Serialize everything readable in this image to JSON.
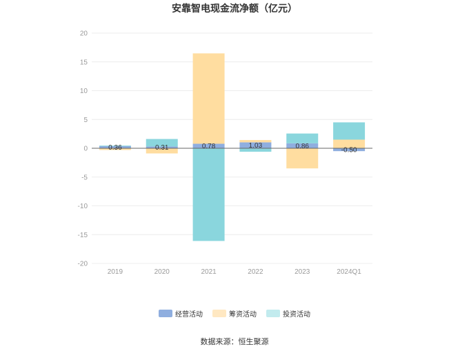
{
  "chart_data": {
    "type": "bar",
    "stacked": true,
    "title": "安靠智电现金流净额（亿元）",
    "categories": [
      "2019",
      "2020",
      "2021",
      "2022",
      "2023",
      "2024Q1"
    ],
    "series": [
      {
        "name": "经营活动",
        "color": "#8FAEDF",
        "values": [
          0.36,
          0.31,
          0.78,
          1.03,
          0.86,
          -0.5
        ]
      },
      {
        "name": "筹资活动",
        "color": "#FFDDA0",
        "values": [
          -0.3,
          -0.9,
          15.7,
          0.4,
          -3.5,
          1.5
        ]
      },
      {
        "name": "投资活动",
        "color": "#8AD6DD",
        "values": [
          0.1,
          1.3,
          -16.1,
          -0.6,
          1.7,
          3.0
        ]
      }
    ],
    "data_labels": [
      "0.36",
      "0.31",
      "0.78",
      "1.03",
      "0.86",
      "-0.50"
    ],
    "yticks": [
      20,
      15,
      10,
      5,
      0,
      -5,
      -10,
      -15,
      -20
    ],
    "ylim": [
      -20,
      20
    ],
    "grid": true,
    "legend_position": "bottom-center",
    "legend_swatch_colors": [
      "#8FAEDF",
      "#FFE8C2",
      "#C2EBEE"
    ],
    "source": "数据来源：恒生聚源"
  }
}
